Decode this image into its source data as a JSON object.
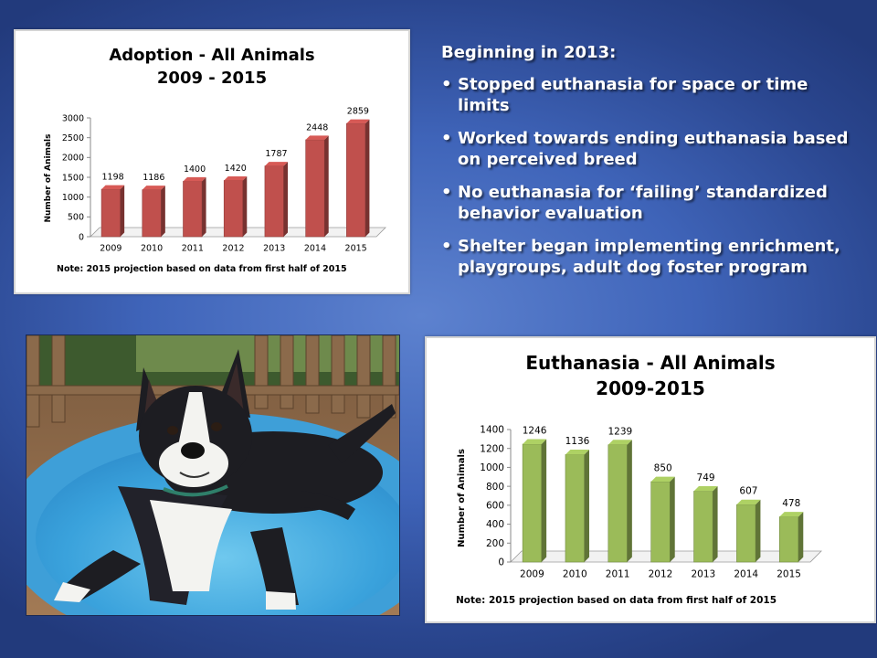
{
  "colors": {
    "adoption_bar": "#c0504d",
    "euthanasia_bar": "#9bbb59"
  },
  "chart_data": [
    {
      "type": "bar",
      "title": "Adoption - All Animals",
      "subtitle": "2009 - 2015",
      "ylabel": "Number of Animals",
      "xlabel": "",
      "categories": [
        "2009",
        "2010",
        "2011",
        "2012",
        "2013",
        "2014",
        "2015"
      ],
      "values": [
        1198,
        1186,
        1400,
        1420,
        1787,
        2448,
        2859
      ],
      "yticks": [
        0,
        500,
        1000,
        1500,
        2000,
        2500,
        3000
      ],
      "ylim": [
        0,
        3000
      ],
      "grid": false,
      "note": "Note: 2015 projection based on data from first half of 2015"
    },
    {
      "type": "bar",
      "title": "Euthanasia - All Animals",
      "subtitle": "2009-2015",
      "ylabel": "Number of Animals",
      "xlabel": "",
      "categories": [
        "2009",
        "2010",
        "2011",
        "2012",
        "2013",
        "2014",
        "2015"
      ],
      "values": [
        1246,
        1136,
        1239,
        850,
        749,
        607,
        478
      ],
      "yticks": [
        0,
        200,
        400,
        600,
        800,
        1000,
        1200,
        1400
      ],
      "ylim": [
        0,
        1400
      ],
      "grid": false,
      "note": "Note:  2015 projection based on data from first half of 2015"
    }
  ],
  "text_block": {
    "heading": "Beginning in 2013:",
    "bullet": "•",
    "bullets": [
      "Stopped euthanasia for space or time limits",
      "Worked towards ending euthanasia based on perceived breed",
      "No euthanasia for ‘failing’ standardized behavior evaluation",
      "Shelter began implementing enrichment, playgroups, adult dog foster program"
    ]
  }
}
